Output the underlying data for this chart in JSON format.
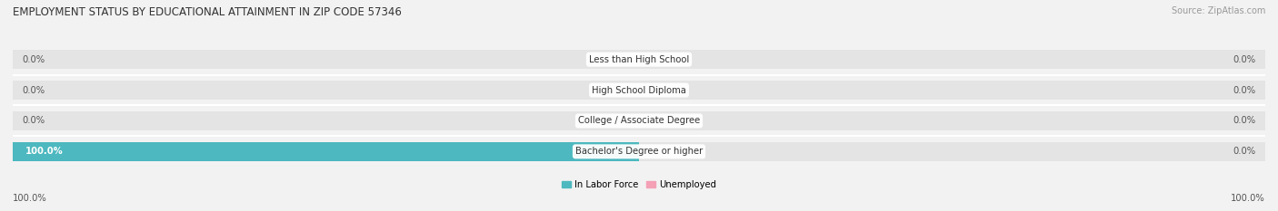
{
  "title": "EMPLOYMENT STATUS BY EDUCATIONAL ATTAINMENT IN ZIP CODE 57346",
  "source": "Source: ZipAtlas.com",
  "categories": [
    "Less than High School",
    "High School Diploma",
    "College / Associate Degree",
    "Bachelor's Degree or higher"
  ],
  "in_labor_force": [
    0.0,
    0.0,
    0.0,
    100.0
  ],
  "unemployed": [
    0.0,
    0.0,
    0.0,
    0.0
  ],
  "bar_color_labor": "#4db8bf",
  "bar_color_unemployed": "#f4a0b5",
  "bg_color": "#f2f2f2",
  "bar_bg_color": "#e4e4e4",
  "title_fontsize": 8.5,
  "label_fontsize": 7.2,
  "tick_fontsize": 7.2,
  "source_fontsize": 7.0,
  "bar_height": 0.62,
  "x_left_label": "100.0%",
  "x_right_label": "100.0%",
  "legend_labor": "In Labor Force",
  "legend_unemp": "Unemployed"
}
